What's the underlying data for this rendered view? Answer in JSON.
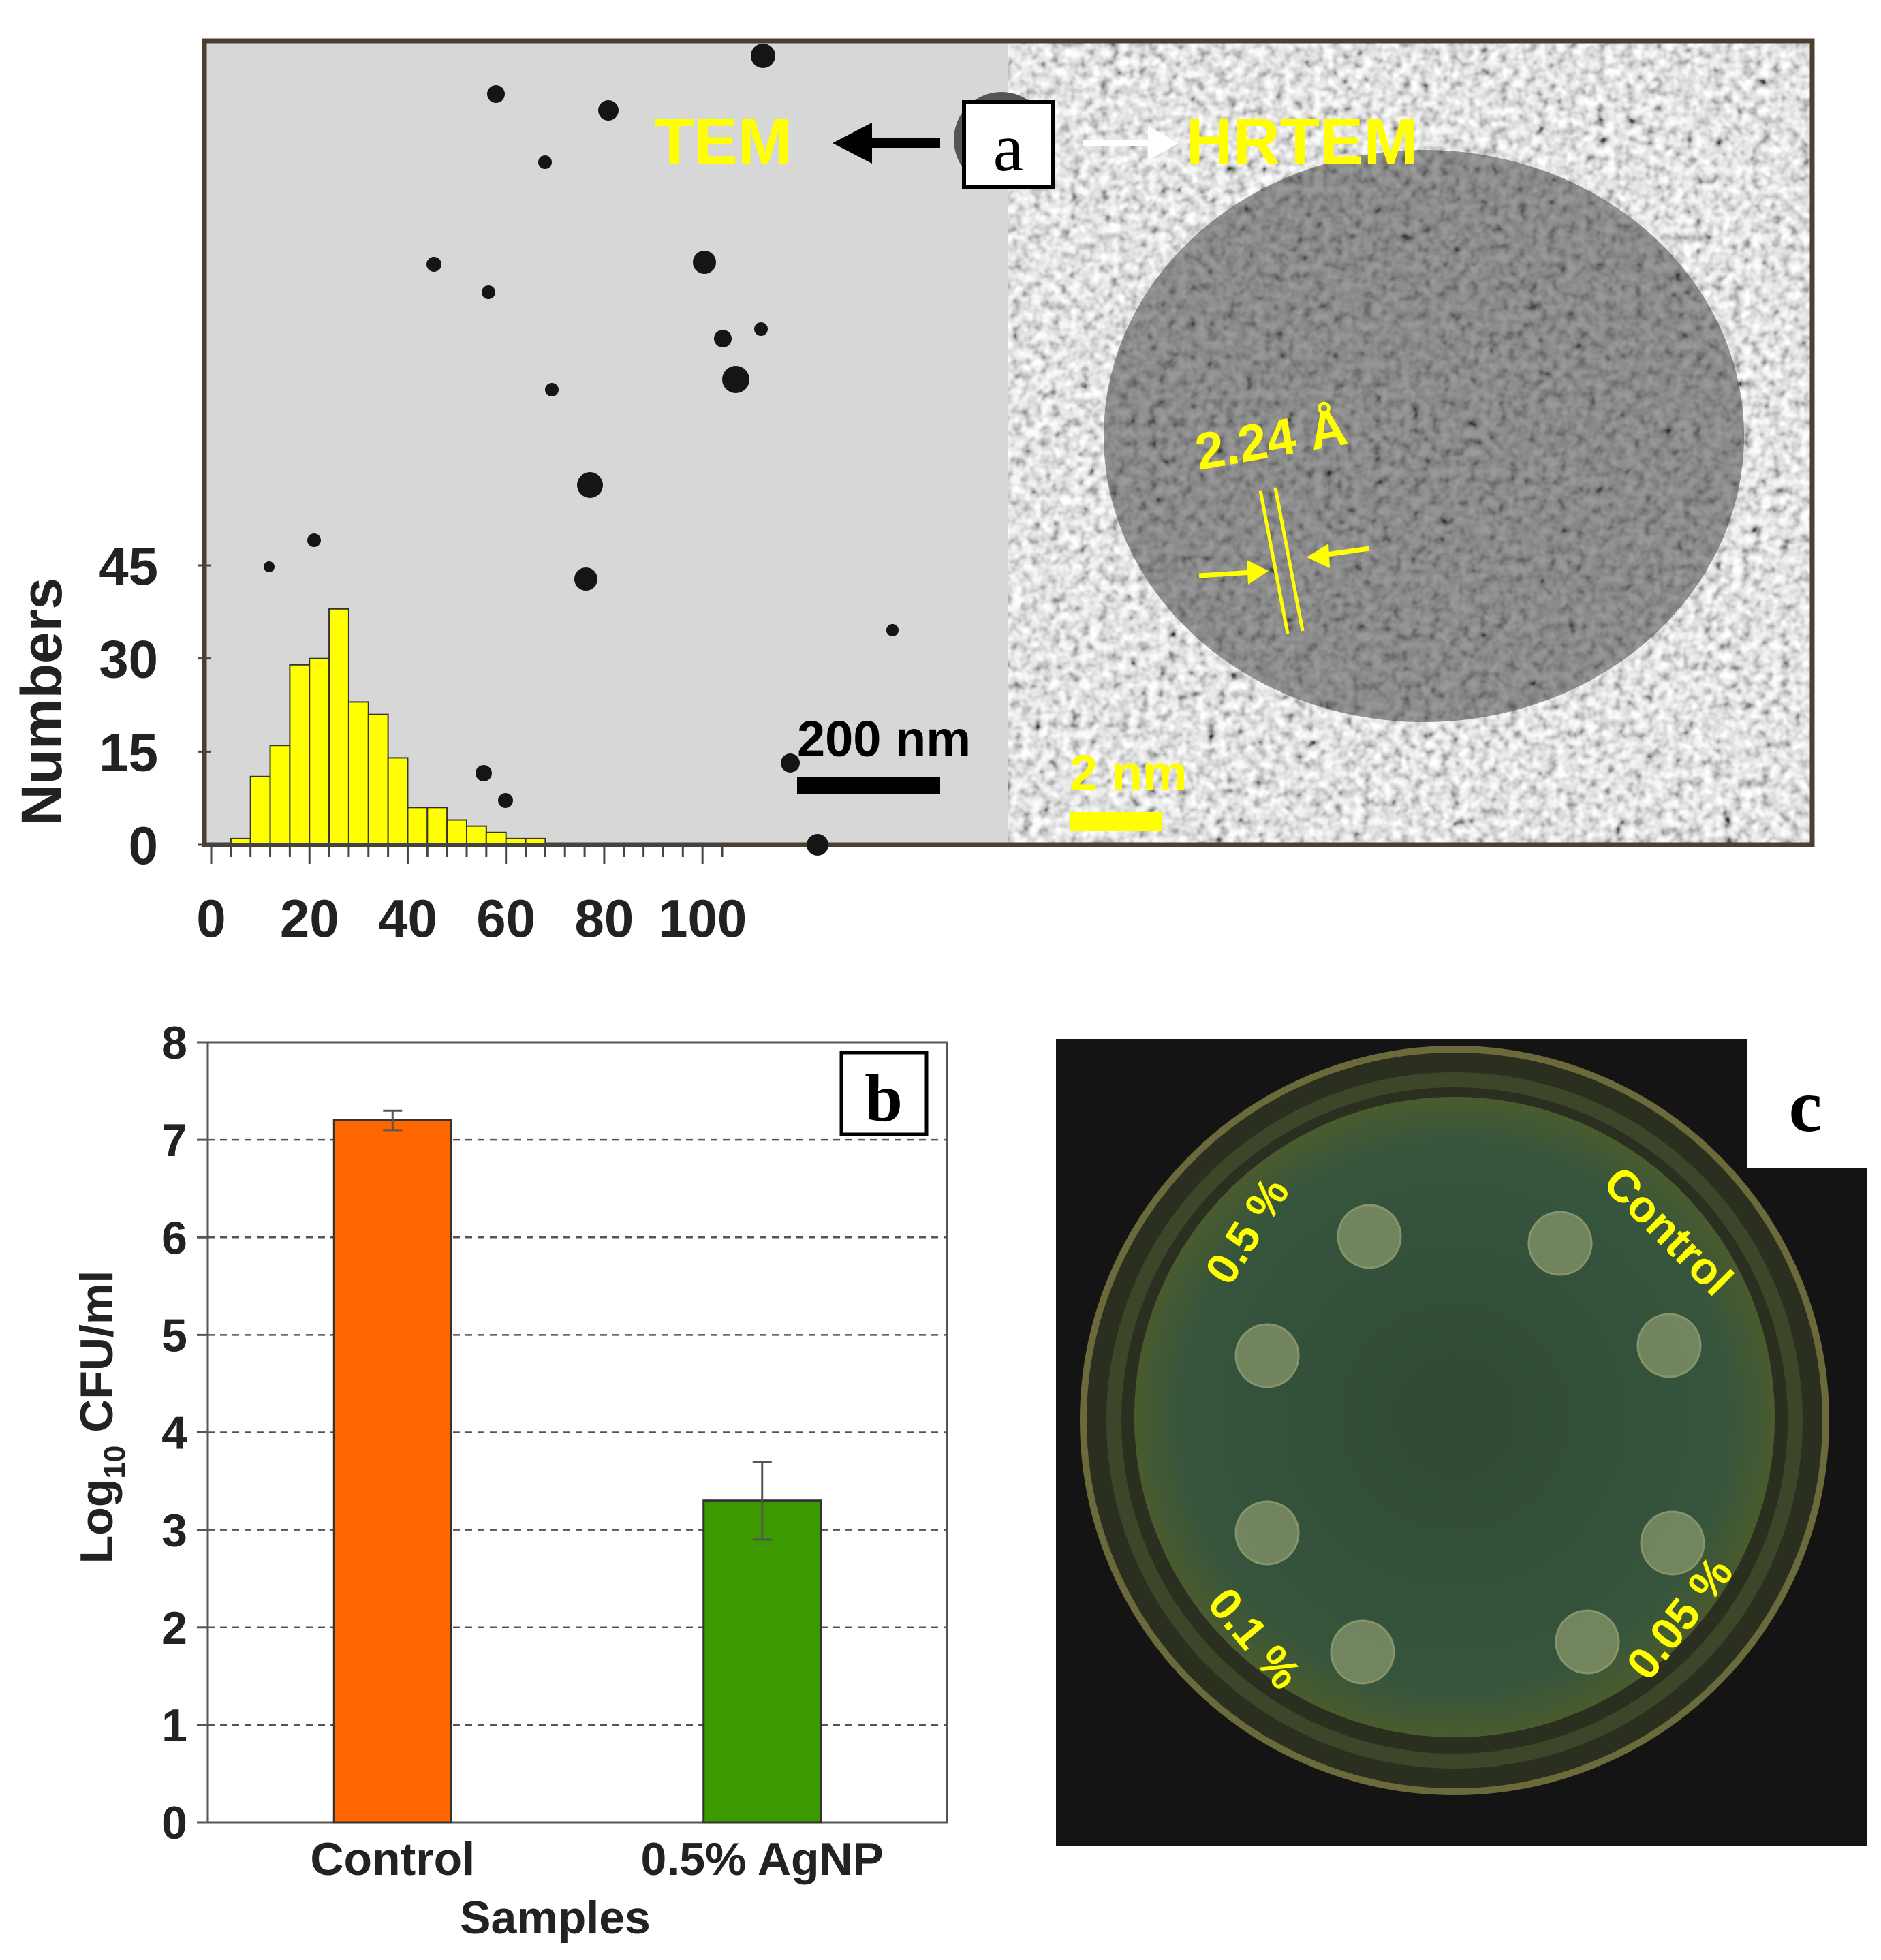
{
  "panel_a": {
    "label": "a",
    "tem_label": "TEM",
    "hrtem_label": "HRTEM",
    "tem_scale_bar": "200 nm",
    "hrtem_scale_bar": "2 nm",
    "lattice_spacing": "2.24 Å",
    "colors": {
      "annotation": "#ffff00",
      "histogram_bar": "#ffff00",
      "frame": "#4a4030"
    }
  },
  "panel_b": {
    "label": "b"
  },
  "panel_c": {
    "label": "c",
    "well_labels": [
      "0.5 %",
      "Control",
      "0.1 %",
      "0.05 %"
    ],
    "colors": {
      "agar": "#34513a",
      "background": "#141414",
      "text": "#ffff00"
    }
  },
  "chart_data": [
    {
      "type": "bar",
      "panel": "a",
      "x_ticks": [
        "0",
        "20",
        "40",
        "60",
        "80",
        "100"
      ],
      "y_ticks": [
        "0",
        "15",
        "30",
        "45"
      ],
      "ylabel": "Numbers",
      "bin_width": 4,
      "bin_starts": [
        4,
        8,
        12,
        16,
        20,
        24,
        28,
        32,
        36,
        40,
        44,
        48,
        52,
        56,
        60,
        64
      ],
      "values": [
        1,
        11,
        16,
        29,
        30,
        38,
        23,
        21,
        14,
        6,
        6,
        4,
        3,
        2,
        1,
        1
      ],
      "xlim": [
        0,
        104
      ],
      "ylim": [
        0,
        45
      ],
      "color": "#ffff00"
    },
    {
      "type": "bar",
      "panel": "b",
      "categories": [
        "Control",
        "0.5% AgNP"
      ],
      "values": [
        7.2,
        3.3
      ],
      "errors": [
        0.1,
        0.4
      ],
      "colors": [
        "#ff6600",
        "#3c9900"
      ],
      "xlabel": "Samples",
      "ylabel_main": "Log",
      "ylabel_sub": "10",
      "ylabel_rest": " CFU/ml",
      "y_ticks": [
        "0",
        "1",
        "2",
        "3",
        "4",
        "5",
        "6",
        "7",
        "8"
      ],
      "ylim": [
        0,
        8
      ],
      "grid": "dashed horizontal"
    }
  ]
}
